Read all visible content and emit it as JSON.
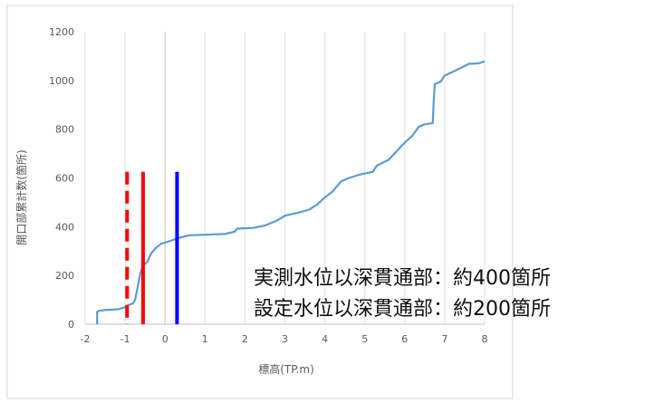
{
  "chart_data": {
    "type": "line",
    "xlabel": "標高(TP.m)",
    "ylabel": "開口部累計数(箇所)",
    "xlim": [
      -2,
      8
    ],
    "ylim": [
      0,
      1200
    ],
    "x_ticks": [
      "-2",
      "-1",
      "0",
      "1",
      "2",
      "3",
      "4",
      "5",
      "6",
      "7",
      "8"
    ],
    "y_ticks": [
      "0",
      "200",
      "400",
      "600",
      "800",
      "1000",
      "1200"
    ],
    "grid": "vertical",
    "series": [
      {
        "color": "#5b9bd5",
        "points": [
          [
            -1.7,
            0
          ],
          [
            -1.7,
            50
          ],
          [
            -1.65,
            55
          ],
          [
            -1.5,
            58
          ],
          [
            -1.3,
            60
          ],
          [
            -1.15,
            62
          ],
          [
            -1.0,
            70
          ],
          [
            -0.9,
            80
          ],
          [
            -0.8,
            85
          ],
          [
            -0.75,
            100
          ],
          [
            -0.7,
            140
          ],
          [
            -0.62,
            210
          ],
          [
            -0.55,
            240
          ],
          [
            -0.45,
            255
          ],
          [
            -0.35,
            290
          ],
          [
            -0.25,
            310
          ],
          [
            -0.1,
            330
          ],
          [
            0.1,
            340
          ],
          [
            0.3,
            352
          ],
          [
            0.6,
            365
          ],
          [
            1.0,
            367
          ],
          [
            1.5,
            370
          ],
          [
            1.75,
            380
          ],
          [
            1.8,
            392
          ],
          [
            2.2,
            395
          ],
          [
            2.5,
            405
          ],
          [
            2.8,
            425
          ],
          [
            3.0,
            445
          ],
          [
            3.4,
            460
          ],
          [
            3.6,
            470
          ],
          [
            3.8,
            490
          ],
          [
            4.0,
            520
          ],
          [
            4.2,
            545
          ],
          [
            4.4,
            585
          ],
          [
            4.6,
            600
          ],
          [
            4.9,
            615
          ],
          [
            5.2,
            625
          ],
          [
            5.3,
            650
          ],
          [
            5.6,
            675
          ],
          [
            5.8,
            710
          ],
          [
            6.0,
            745
          ],
          [
            6.2,
            775
          ],
          [
            6.35,
            810
          ],
          [
            6.5,
            820
          ],
          [
            6.7,
            825
          ],
          [
            6.72,
            900
          ],
          [
            6.75,
            985
          ],
          [
            6.9,
            995
          ],
          [
            7.0,
            1020
          ],
          [
            7.2,
            1035
          ],
          [
            7.45,
            1055
          ],
          [
            7.6,
            1068
          ],
          [
            7.85,
            1070
          ],
          [
            8.0,
            1078
          ]
        ]
      }
    ],
    "vertical_markers": [
      {
        "x": -0.95,
        "y_top": 625,
        "color": "#ff0000",
        "style": "dashed"
      },
      {
        "x": -0.55,
        "y_top": 625,
        "color": "#ff0000",
        "style": "solid"
      },
      {
        "x": 0.3,
        "y_top": 625,
        "color": "#0000ff",
        "style": "solid"
      }
    ]
  },
  "annotations": {
    "line1": "実測水位以深貫通部：約400箇所",
    "line2": "設定水位以深貫通部：約200箇所"
  }
}
